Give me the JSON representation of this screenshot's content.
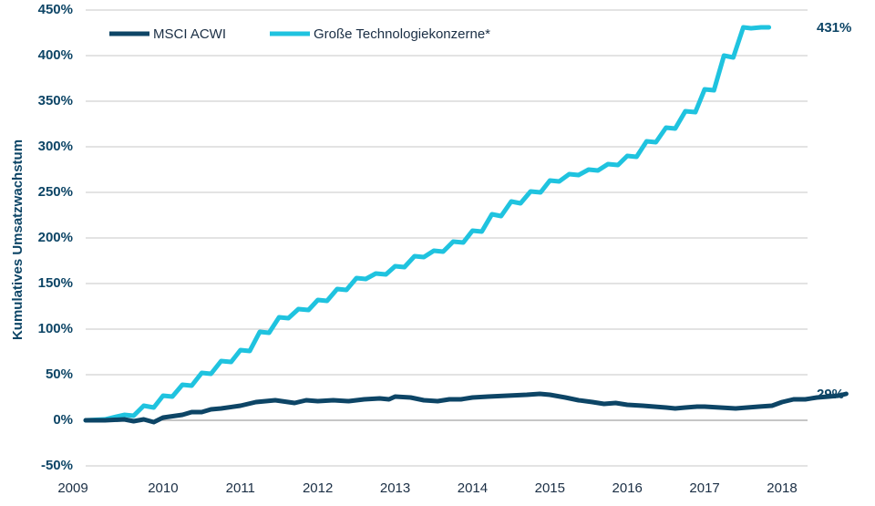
{
  "chart_data": {
    "type": "line",
    "title": "",
    "xlabel": "",
    "ylabel": "Kumulatives Umsatzwachstum",
    "xlim": [
      2009,
      2018.33
    ],
    "ylim": [
      -50,
      450
    ],
    "x_ticks": [
      2009,
      2010,
      2011,
      2012,
      2013,
      2014,
      2015,
      2016,
      2017,
      2018
    ],
    "x_tick_labels": [
      "2009",
      "2010",
      "2011",
      "2012",
      "2013",
      "2014",
      "2015",
      "2016",
      "2017",
      "2018"
    ],
    "y_ticks": [
      -50,
      0,
      50,
      100,
      150,
      200,
      250,
      300,
      350,
      400,
      450
    ],
    "y_tick_labels": [
      "-50%",
      "0%",
      "50%",
      "100%",
      "150%",
      "200%",
      "250%",
      "300%",
      "350%",
      "400%",
      "450%"
    ],
    "grid": "horizontal",
    "legend_position": "top-left",
    "series": [
      {
        "name": "MSCI ACWI",
        "color": "#0d4566",
        "end_label": "29%",
        "points": [
          [
            2009.0,
            0
          ],
          [
            2009.25,
            0
          ],
          [
            2009.5,
            1
          ],
          [
            2009.62,
            -1
          ],
          [
            2009.75,
            1
          ],
          [
            2009.88,
            -2
          ],
          [
            2010.0,
            3
          ],
          [
            2010.25,
            6
          ],
          [
            2010.37,
            9
          ],
          [
            2010.5,
            9
          ],
          [
            2010.62,
            12
          ],
          [
            2010.75,
            13
          ],
          [
            2011.0,
            16
          ],
          [
            2011.2,
            20
          ],
          [
            2011.45,
            22
          ],
          [
            2011.7,
            19
          ],
          [
            2011.85,
            22
          ],
          [
            2012.0,
            21
          ],
          [
            2012.2,
            22
          ],
          [
            2012.4,
            21
          ],
          [
            2012.6,
            23
          ],
          [
            2012.8,
            24
          ],
          [
            2012.92,
            23
          ],
          [
            2013.0,
            26
          ],
          [
            2013.2,
            25
          ],
          [
            2013.37,
            22
          ],
          [
            2013.55,
            21
          ],
          [
            2013.7,
            23
          ],
          [
            2013.85,
            23
          ],
          [
            2014.0,
            25
          ],
          [
            2014.2,
            26
          ],
          [
            2014.45,
            27
          ],
          [
            2014.7,
            28
          ],
          [
            2014.87,
            29
          ],
          [
            2015.0,
            28
          ],
          [
            2015.2,
            25
          ],
          [
            2015.37,
            22
          ],
          [
            2015.55,
            20
          ],
          [
            2015.7,
            18
          ],
          [
            2015.85,
            19
          ],
          [
            2016.0,
            17
          ],
          [
            2016.2,
            16
          ],
          [
            2016.35,
            15
          ],
          [
            2016.5,
            14
          ],
          [
            2016.62,
            13
          ],
          [
            2016.75,
            14
          ],
          [
            2016.9,
            15
          ],
          [
            2017.0,
            15
          ],
          [
            2017.2,
            14
          ],
          [
            2017.4,
            13
          ],
          [
            2017.55,
            14
          ],
          [
            2017.7,
            15
          ],
          [
            2017.87,
            16
          ],
          [
            2018.0,
            20
          ],
          [
            2018.15,
            23
          ],
          [
            2018.3,
            23
          ],
          [
            2018.45,
            25
          ],
          [
            2018.6,
            26
          ],
          [
            2018.73,
            27
          ],
          [
            2018.83,
            29
          ]
        ]
      },
      {
        "name": "Große Technologiekonzerne*",
        "color": "#1fc3df",
        "end_label": "431%",
        "points": [
          [
            2009.0,
            0
          ],
          [
            2009.25,
            1
          ],
          [
            2009.5,
            6
          ],
          [
            2009.62,
            5
          ],
          [
            2009.75,
            16
          ],
          [
            2009.88,
            14
          ],
          [
            2010.0,
            27
          ],
          [
            2010.12,
            26
          ],
          [
            2010.25,
            39
          ],
          [
            2010.37,
            38
          ],
          [
            2010.5,
            52
          ],
          [
            2010.62,
            51
          ],
          [
            2010.75,
            65
          ],
          [
            2010.88,
            64
          ],
          [
            2011.0,
            77
          ],
          [
            2011.12,
            76
          ],
          [
            2011.25,
            97
          ],
          [
            2011.37,
            96
          ],
          [
            2011.5,
            113
          ],
          [
            2011.62,
            112
          ],
          [
            2011.75,
            122
          ],
          [
            2011.88,
            121
          ],
          [
            2012.0,
            132
          ],
          [
            2012.12,
            131
          ],
          [
            2012.25,
            144
          ],
          [
            2012.37,
            143
          ],
          [
            2012.5,
            156
          ],
          [
            2012.62,
            155
          ],
          [
            2012.75,
            161
          ],
          [
            2012.88,
            160
          ],
          [
            2013.0,
            169
          ],
          [
            2013.12,
            168
          ],
          [
            2013.25,
            180
          ],
          [
            2013.37,
            179
          ],
          [
            2013.5,
            186
          ],
          [
            2013.62,
            185
          ],
          [
            2013.75,
            196
          ],
          [
            2013.88,
            195
          ],
          [
            2014.0,
            208
          ],
          [
            2014.12,
            207
          ],
          [
            2014.25,
            226
          ],
          [
            2014.37,
            224
          ],
          [
            2014.5,
            240
          ],
          [
            2014.62,
            238
          ],
          [
            2014.75,
            251
          ],
          [
            2014.88,
            250
          ],
          [
            2015.0,
            263
          ],
          [
            2015.12,
            262
          ],
          [
            2015.25,
            270
          ],
          [
            2015.37,
            269
          ],
          [
            2015.5,
            275
          ],
          [
            2015.62,
            274
          ],
          [
            2015.75,
            281
          ],
          [
            2015.88,
            280
          ],
          [
            2016.0,
            290
          ],
          [
            2016.12,
            289
          ],
          [
            2016.25,
            306
          ],
          [
            2016.37,
            305
          ],
          [
            2016.5,
            321
          ],
          [
            2016.62,
            320
          ],
          [
            2016.75,
            339
          ],
          [
            2016.88,
            338
          ],
          [
            2017.0,
            363
          ],
          [
            2017.12,
            362
          ],
          [
            2017.25,
            400
          ],
          [
            2017.37,
            398
          ],
          [
            2017.5,
            431
          ],
          [
            2017.6,
            430
          ],
          [
            2017.73,
            431
          ],
          [
            2017.83,
            431
          ]
        ]
      }
    ]
  }
}
